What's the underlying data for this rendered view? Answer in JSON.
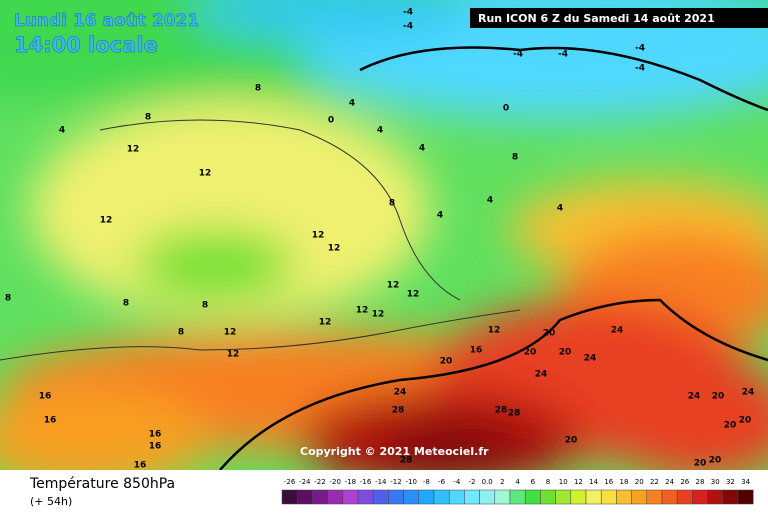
{
  "header": {
    "date": "Lundi 16 août 2021",
    "time": "14:00 locale",
    "run": "Run ICON 6 Z du Samedi 14 août 2021"
  },
  "copyright": "Copyright © 2021 Meteociel.fr",
  "footer": {
    "title": "Température 850hPa",
    "lead": "(+ 54h)"
  },
  "legend": {
    "labels": [
      "-26",
      "-24",
      "-22",
      "-20",
      "-18",
      "-16",
      "-14",
      "-12",
      "-10",
      "-8",
      "-6",
      "-4",
      "-2",
      "0.0",
      "2",
      "4",
      "6",
      "8",
      "10",
      "12",
      "14",
      "16",
      "18",
      "20",
      "22",
      "24",
      "26",
      "28",
      "30",
      "32",
      "34"
    ],
    "colors": [
      "#3d0a3d",
      "#5a1060",
      "#7a1a87",
      "#9a2bb0",
      "#b040d0",
      "#7c4de0",
      "#5060e8",
      "#3a78f0",
      "#2a90f8",
      "#20a8ff",
      "#30c0ff",
      "#50d8ff",
      "#70e8ff",
      "#90f0f0",
      "#a0f8d0",
      "#60e880",
      "#40e040",
      "#70e030",
      "#a0e830",
      "#d0f030",
      "#f0f060",
      "#f8e040",
      "#f8c030",
      "#f8a020",
      "#f88020",
      "#f06020",
      "#e84020",
      "#d82020",
      "#b01010",
      "#800808",
      "#500000"
    ]
  },
  "map": {
    "labels": [
      "-4",
      "-4",
      "-4",
      "-4",
      "-4",
      "-4",
      "0",
      "8",
      "4",
      "0",
      "4",
      "8",
      "4",
      "12",
      "4",
      "12",
      "8",
      "4",
      "8",
      "12",
      "4",
      "12",
      "12",
      "4",
      "8",
      "8",
      "8",
      "12",
      "12",
      "12",
      "12",
      "12",
      "8",
      "12",
      "12",
      "12",
      "20",
      "24",
      "20",
      "20",
      "24",
      "24",
      "20",
      "16",
      "24",
      "28",
      "28",
      "28",
      "16",
      "16",
      "16",
      "16",
      "16",
      "20",
      "28",
      "24",
      "24",
      "20",
      "20",
      "20",
      "20",
      "20"
    ]
  }
}
